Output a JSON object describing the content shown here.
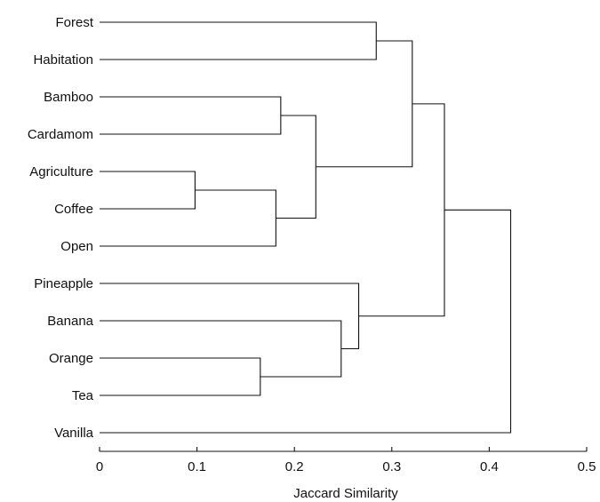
{
  "chart_data": {
    "type": "dendrogram",
    "orientation": "horizontal",
    "xlabel": "Jaccard Similarity",
    "xlim": [
      0,
      0.5
    ],
    "xticks": [
      0,
      0.1,
      0.2,
      0.3,
      0.4,
      0.5
    ],
    "xtick_labels": [
      "0",
      "0.1",
      "0.2",
      "0.3",
      "0.4",
      "0.5"
    ],
    "grid": false,
    "leaves": [
      "Forest",
      "Habitation",
      "Bamboo",
      "Cardamom",
      "Agriculture",
      "Coffee",
      "Open",
      "Pineapple",
      "Banana",
      "Orange",
      "Tea",
      "Vanilla"
    ],
    "merges": [
      {
        "a": "Agriculture",
        "b": "Coffee",
        "height": 0.098,
        "name": "m1"
      },
      {
        "a": "Orange",
        "b": "Tea",
        "height": 0.165,
        "name": "m2"
      },
      {
        "a": "m1",
        "b": "Open",
        "height": 0.181,
        "name": "m3"
      },
      {
        "a": "Bamboo",
        "b": "Cardamom",
        "height": 0.186,
        "name": "m4"
      },
      {
        "a": "m4",
        "b": "m3",
        "height": 0.222,
        "name": "m5"
      },
      {
        "a": "Banana",
        "b": "m2",
        "height": 0.248,
        "name": "m6"
      },
      {
        "a": "Pineapple",
        "b": "m6",
        "height": 0.266,
        "name": "m7"
      },
      {
        "a": "Forest",
        "b": "Habitation",
        "height": 0.284,
        "name": "m8"
      },
      {
        "a": "m8",
        "b": "m5",
        "height": 0.321,
        "name": "m9"
      },
      {
        "a": "m9",
        "b": "m7",
        "height": 0.354,
        "name": "m10"
      },
      {
        "a": "m10",
        "b": "Vanilla",
        "height": 0.422,
        "name": "m11"
      }
    ]
  },
  "colors": {
    "line": "#111111",
    "text": "#111111",
    "background": "#ffffff"
  }
}
